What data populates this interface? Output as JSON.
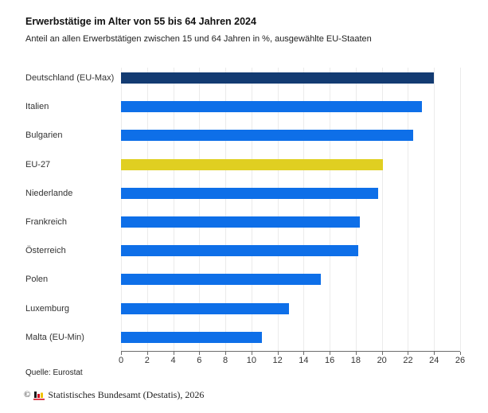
{
  "chart_data": {
    "type": "bar",
    "orientation": "horizontal",
    "title": "Erwerbstätige im Alter von 55 bis 64 Jahren 2024",
    "subtitle": "Anteil an allen Erwerbstätigen zwischen 15 und 64 Jahren in %, ausgewählte EU-Staaten",
    "categories": [
      "Deutschland (EU-Max)",
      "Italien",
      "Bulgarien",
      "EU-27",
      "Niederlande",
      "Frankreich",
      "Österreich",
      "Polen",
      "Luxemburg",
      "Malta (EU-Min)"
    ],
    "values": [
      24.0,
      23.1,
      22.4,
      20.1,
      19.7,
      18.3,
      18.2,
      15.3,
      12.9,
      10.8
    ],
    "bar_colors": [
      "#133B72",
      "#0E6FE8",
      "#0E6FE8",
      "#E0CF21",
      "#0E6FE8",
      "#0E6FE8",
      "#0E6FE8",
      "#0E6FE8",
      "#0E6FE8",
      "#0E6FE8"
    ],
    "xlabel": "",
    "ylabel": "",
    "xlim": [
      0,
      26
    ],
    "x_ticks": [
      0,
      2,
      4,
      6,
      8,
      10,
      12,
      14,
      16,
      18,
      20,
      22,
      24,
      26
    ],
    "grid": "vertical",
    "legend": "none"
  },
  "footer": {
    "source": "Quelle: Eurostat",
    "copyright_symbol": "©",
    "copyright_text": "Statistisches Bundesamt (Destatis), 2026"
  },
  "colors": {
    "bar_blue": "#0E6FE8",
    "bar_navy": "#133B72",
    "bar_yellow": "#E0CF21",
    "gridline": "#EBEBEB",
    "axis": "#6B6B6B"
  }
}
